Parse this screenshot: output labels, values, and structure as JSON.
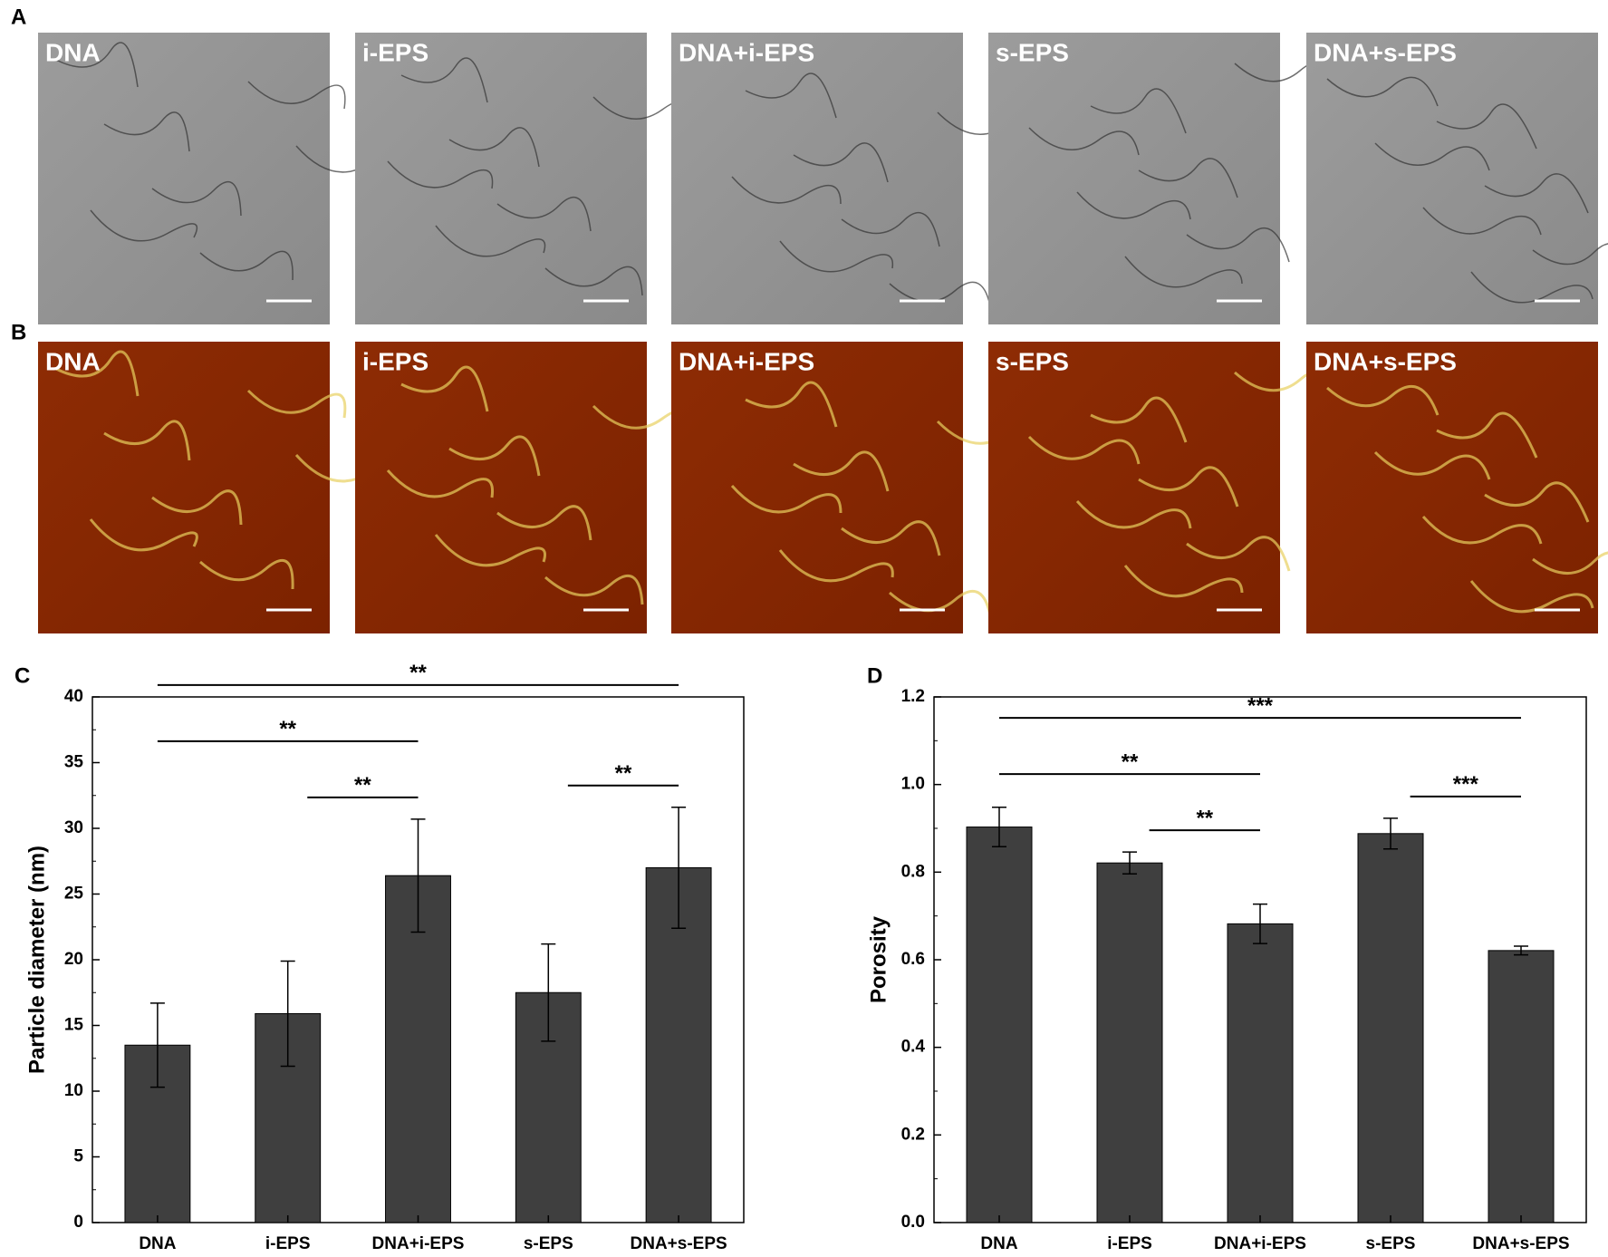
{
  "panels": {
    "A": {
      "label": "A",
      "images": [
        "DNA",
        "i-EPS",
        "DNA+i-EPS",
        "s-EPS",
        "DNA+s-EPS"
      ]
    },
    "B": {
      "label": "B",
      "images": [
        "DNA",
        "i-EPS",
        "DNA+i-EPS",
        "s-EPS",
        "DNA+s-EPS"
      ]
    }
  },
  "chart_data": [
    {
      "type": "bar",
      "panel_label": "C",
      "y_label": "Particle diameter (nm)",
      "categories": [
        "DNA",
        "i-EPS",
        "DNA+i-EPS",
        "s-EPS",
        "DNA+s-EPS"
      ],
      "values": [
        13.5,
        15.9,
        26.4,
        17.5,
        27.0
      ],
      "errors": [
        3.2,
        4.0,
        4.3,
        3.7,
        4.6
      ],
      "color": "#3f3f3f",
      "ylim": [
        0,
        40
      ],
      "yticks": [
        0,
        5,
        10,
        15,
        20,
        25,
        30,
        35,
        40
      ],
      "significance": [
        {
          "from": 0,
          "to": 4,
          "label": "**"
        },
        {
          "from": 0,
          "to": 2,
          "label": "**"
        },
        {
          "from": 1,
          "to": 2,
          "label": "**"
        },
        {
          "from": 3,
          "to": 4,
          "label": "**"
        }
      ]
    },
    {
      "type": "bar",
      "panel_label": "D",
      "y_label": "Porosity",
      "categories": [
        "DNA",
        "i-EPS",
        "DNA+i-EPS",
        "s-EPS",
        "DNA+s-EPS"
      ],
      "values": [
        0.903,
        0.821,
        0.682,
        0.888,
        0.621
      ],
      "errors": [
        0.045,
        0.025,
        0.045,
        0.035,
        0.01
      ],
      "color": "#3f3f3f",
      "ylim": [
        0,
        1.2
      ],
      "yticks": [
        {
          "value": 0,
          "label": "0.0"
        },
        0.2,
        0.4,
        0.6,
        0.8,
        {
          "value": 1,
          "label": "1.0"
        },
        1.2
      ],
      "significance": [
        {
          "from": 0,
          "to": 4,
          "label": "***"
        },
        {
          "from": 0,
          "to": 2,
          "label": "**"
        },
        {
          "from": 1,
          "to": 2,
          "label": "**"
        },
        {
          "from": 3,
          "to": 4,
          "label": "***"
        }
      ]
    }
  ]
}
